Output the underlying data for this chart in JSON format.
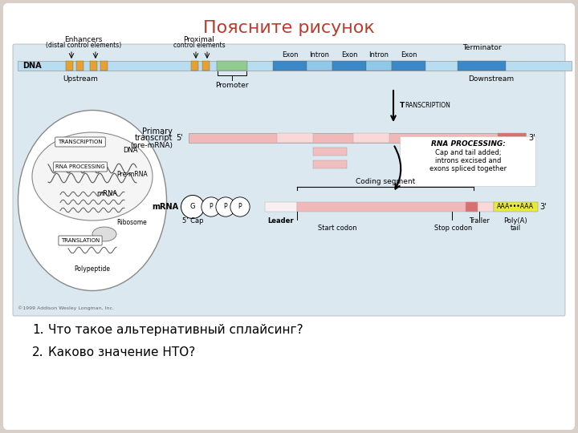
{
  "title": "Поясните рисунок",
  "title_color": "#c0392b",
  "title_fontsize": 16,
  "bg_outer": "#d8d0c8",
  "bg_inner": "#ffffff",
  "bg_diagram": "#dce8f0",
  "question1": "Что такое альтернативный сплайсинг?",
  "question2": "Каково значение НТО?",
  "question_fontsize": 11,
  "copyright": "©1999 Addison Wesley Longman, Inc.",
  "dna_bar_color": "#b8ddf0",
  "enhancer_color": "#e8a030",
  "proximal_color": "#e8a030",
  "exon_color": "#3a88c8",
  "intron_color": "#90c8e8",
  "terminator_color": "#3a88c8",
  "promoter_color": "#90cc90",
  "pre_mrna_pink": "#f0b8b8",
  "pre_mrna_light": "#f8d8d8",
  "mrna_pink": "#f0b8b8",
  "mrna_dark": "#d87070",
  "poly_a_yellow": "#e8e840",
  "intron_rect_pink": "#f0c0c0"
}
